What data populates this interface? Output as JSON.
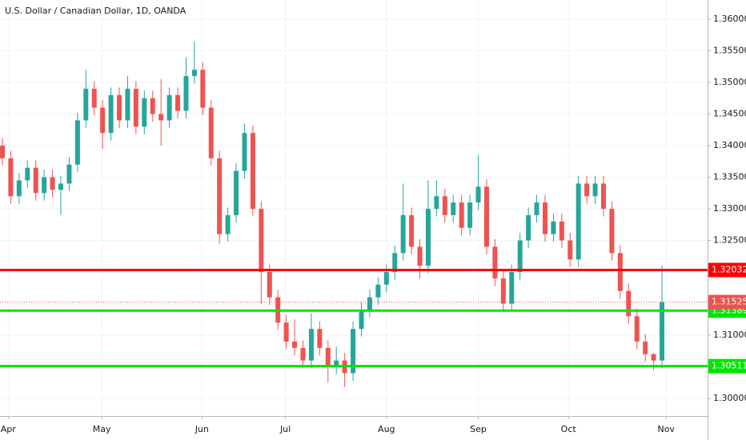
{
  "chart_data": {
    "type": "candlestick",
    "title": "U.S. Dollar / Canadian Dollar, 1D, OANDA",
    "up_color": "#26a69a",
    "down_color": "#ef5350",
    "grid": true,
    "ylim": [
      1.29722,
      1.36304
    ],
    "yticks": [
      {
        "value": 1.3,
        "label": "1.30000"
      },
      {
        "value": 1.305,
        "label": "1.30500"
      },
      {
        "value": 1.31,
        "label": "1.31000"
      },
      {
        "value": 1.315,
        "label": "1.31500"
      },
      {
        "value": 1.32,
        "label": "1.32000"
      },
      {
        "value": 1.325,
        "label": "1.32500"
      },
      {
        "value": 1.33,
        "label": "1.33000"
      },
      {
        "value": 1.335,
        "label": "1.33500"
      },
      {
        "value": 1.34,
        "label": "1.34000"
      },
      {
        "value": 1.345,
        "label": "1.34500"
      },
      {
        "value": 1.35,
        "label": "1.35000"
      },
      {
        "value": 1.355,
        "label": "1.35500"
      },
      {
        "value": 1.36,
        "label": "1.36000"
      }
    ],
    "xlim": [
      0,
      79
    ],
    "xticks": [
      {
        "value": 0.7,
        "label": "Apr"
      },
      {
        "value": 11.9,
        "label": "May"
      },
      {
        "value": 23.9,
        "label": "Jun"
      },
      {
        "value": 33.9,
        "label": "Jul"
      },
      {
        "value": 46,
        "label": "Aug"
      },
      {
        "value": 57,
        "label": "Sep"
      },
      {
        "value": 67.8,
        "label": "Oct"
      },
      {
        "value": 79.5,
        "label": "Nov"
      }
    ],
    "open": [
      1.34,
      1.338,
      1.332,
      1.3345,
      1.3365,
      1.3325,
      1.335,
      1.333,
      1.334,
      1.337,
      1.344,
      1.349,
      1.346,
      1.342,
      1.348,
      1.344,
      1.349,
      1.343,
      1.3475,
      1.345,
      1.344,
      1.348,
      1.3455,
      1.351,
      1.352,
      1.346,
      1.338,
      1.326,
      1.329,
      1.336,
      1.342,
      1.33,
      1.32,
      1.316,
      1.312,
      1.309,
      1.308,
      1.306,
      1.311,
      1.308,
      1.305,
      1.306,
      1.304,
      1.311,
      1.314,
      1.316,
      1.318,
      1.32,
      1.323,
      1.329,
      1.324,
      1.321,
      1.33,
      1.332,
      1.329,
      1.331,
      1.327,
      1.331,
      1.3335,
      1.324,
      1.319,
      1.315,
      1.32,
      1.325,
      1.329,
      1.331,
      1.326,
      1.328,
      1.325,
      1.322,
      1.334,
      1.332,
      1.334,
      1.33,
      1.323,
      1.317,
      1.313,
      1.309,
      1.307,
      1.306
    ],
    "high": [
      1.3412,
      1.3392,
      1.3357,
      1.3377,
      1.3377,
      1.3362,
      1.3362,
      1.3352,
      1.3382,
      1.3452,
      1.352,
      1.3502,
      1.3472,
      1.3492,
      1.3492,
      1.351,
      1.3502,
      1.3487,
      1.3487,
      1.3505,
      1.3492,
      1.3492,
      1.354,
      1.3565,
      1.3532,
      1.3472,
      1.3392,
      1.3302,
      1.3372,
      1.3435,
      1.3432,
      1.3312,
      1.3212,
      1.3172,
      1.3132,
      1.3125,
      1.3092,
      1.3135,
      1.3122,
      1.3092,
      1.3082,
      1.3072,
      1.3122,
      1.3152,
      1.3172,
      1.3192,
      1.3212,
      1.3242,
      1.334,
      1.3302,
      1.3252,
      1.3345,
      1.3345,
      1.3332,
      1.3322,
      1.3322,
      1.3322,
      1.3385,
      1.3347,
      1.3252,
      1.3202,
      1.3212,
      1.3262,
      1.3302,
      1.3322,
      1.3322,
      1.3292,
      1.3292,
      1.3262,
      1.3352,
      1.3352,
      1.3352,
      1.3352,
      1.3312,
      1.3242,
      1.3182,
      1.3142,
      1.3102,
      1.3072,
      1.321
    ],
    "low": [
      1.3368,
      1.3308,
      1.3308,
      1.3333,
      1.3313,
      1.3313,
      1.3318,
      1.329,
      1.3328,
      1.3358,
      1.3428,
      1.3448,
      1.3395,
      1.3408,
      1.3428,
      1.3428,
      1.3418,
      1.3418,
      1.3438,
      1.34,
      1.3428,
      1.3443,
      1.3443,
      1.3498,
      1.3448,
      1.3368,
      1.3245,
      1.3248,
      1.3278,
      1.3348,
      1.3288,
      1.315,
      1.3148,
      1.3108,
      1.3078,
      1.3068,
      1.3048,
      1.3048,
      1.3068,
      1.3025,
      1.3038,
      1.3018,
      1.3028,
      1.3098,
      1.3128,
      1.3148,
      1.3168,
      1.3188,
      1.3218,
      1.3228,
      1.319,
      1.3198,
      1.3288,
      1.3278,
      1.3278,
      1.3258,
      1.3258,
      1.3298,
      1.3228,
      1.3178,
      1.3138,
      1.3138,
      1.3188,
      1.3238,
      1.3278,
      1.3248,
      1.3248,
      1.3238,
      1.3208,
      1.3208,
      1.3308,
      1.3308,
      1.3288,
      1.3218,
      1.3158,
      1.3118,
      1.3078,
      1.3058,
      1.3045,
      1.3048
    ],
    "close": [
      1.338,
      1.332,
      1.3345,
      1.3365,
      1.3325,
      1.335,
      1.333,
      1.334,
      1.337,
      1.344,
      1.349,
      1.346,
      1.342,
      1.348,
      1.344,
      1.349,
      1.343,
      1.3475,
      1.345,
      1.344,
      1.348,
      1.3455,
      1.351,
      1.352,
      1.346,
      1.338,
      1.326,
      1.329,
      1.336,
      1.342,
      1.33,
      1.32,
      1.316,
      1.312,
      1.309,
      1.308,
      1.306,
      1.311,
      1.308,
      1.305,
      1.306,
      1.304,
      1.311,
      1.314,
      1.316,
      1.318,
      1.32,
      1.323,
      1.329,
      1.324,
      1.321,
      1.33,
      1.332,
      1.329,
      1.331,
      1.327,
      1.331,
      1.3335,
      1.324,
      1.319,
      1.315,
      1.32,
      1.325,
      1.329,
      1.331,
      1.326,
      1.328,
      1.325,
      1.322,
      1.334,
      1.332,
      1.334,
      1.33,
      1.323,
      1.317,
      1.313,
      1.309,
      1.307,
      1.306,
      1.3152
    ],
    "levels": [
      {
        "value": 1.32032,
        "color": "#ff0000"
      },
      {
        "value": 1.31389,
        "color": "#00e600"
      },
      {
        "value": 1.30511,
        "color": "#00e600"
      }
    ],
    "last_price": {
      "value": 1.31525,
      "color": "#ef5350"
    }
  }
}
